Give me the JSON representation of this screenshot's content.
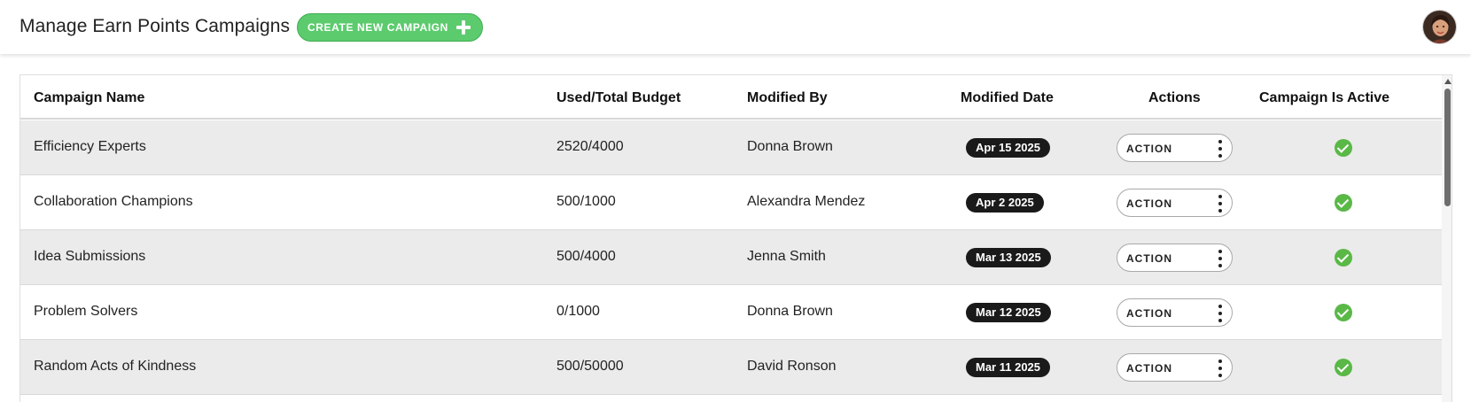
{
  "header": {
    "title": "Manage Earn Points Campaigns",
    "create_button_label": "CREATE NEW CAMPAIGN",
    "create_button_icon": "plus-icon",
    "avatar_icon": "user-avatar"
  },
  "colors": {
    "accent_green": "#5ccb6e",
    "active_check": "#5ab847",
    "date_pill": "#1a1a1a",
    "row_shade": "#ebebeb"
  },
  "table": {
    "columns": {
      "name": "Campaign Name",
      "budget": "Used/Total Budget",
      "modified_by": "Modified By",
      "modified_date": "Modified Date",
      "actions": "Actions",
      "active": "Campaign Is Active"
    },
    "rows": [
      {
        "name": "Efficiency Experts",
        "budget": "2520/4000",
        "modified_by": "Donna Brown",
        "modified_date": "Apr 15 2025",
        "action_label": "ACTION",
        "active": true
      },
      {
        "name": "Collaboration Champions",
        "budget": "500/1000",
        "modified_by": "Alexandra Mendez",
        "modified_date": "Apr 2 2025",
        "action_label": "ACTION",
        "active": true
      },
      {
        "name": "Idea Submissions",
        "budget": "500/4000",
        "modified_by": "Jenna Smith",
        "modified_date": "Mar 13 2025",
        "action_label": "ACTION",
        "active": true
      },
      {
        "name": "Problem Solvers",
        "budget": "0/1000",
        "modified_by": "Donna Brown",
        "modified_date": "Mar 12 2025",
        "action_label": "ACTION",
        "active": true
      },
      {
        "name": "Random Acts of Kindness",
        "budget": "500/50000",
        "modified_by": "David Ronson",
        "modified_date": "Mar 11 2025",
        "action_label": "ACTION",
        "active": true
      }
    ]
  }
}
